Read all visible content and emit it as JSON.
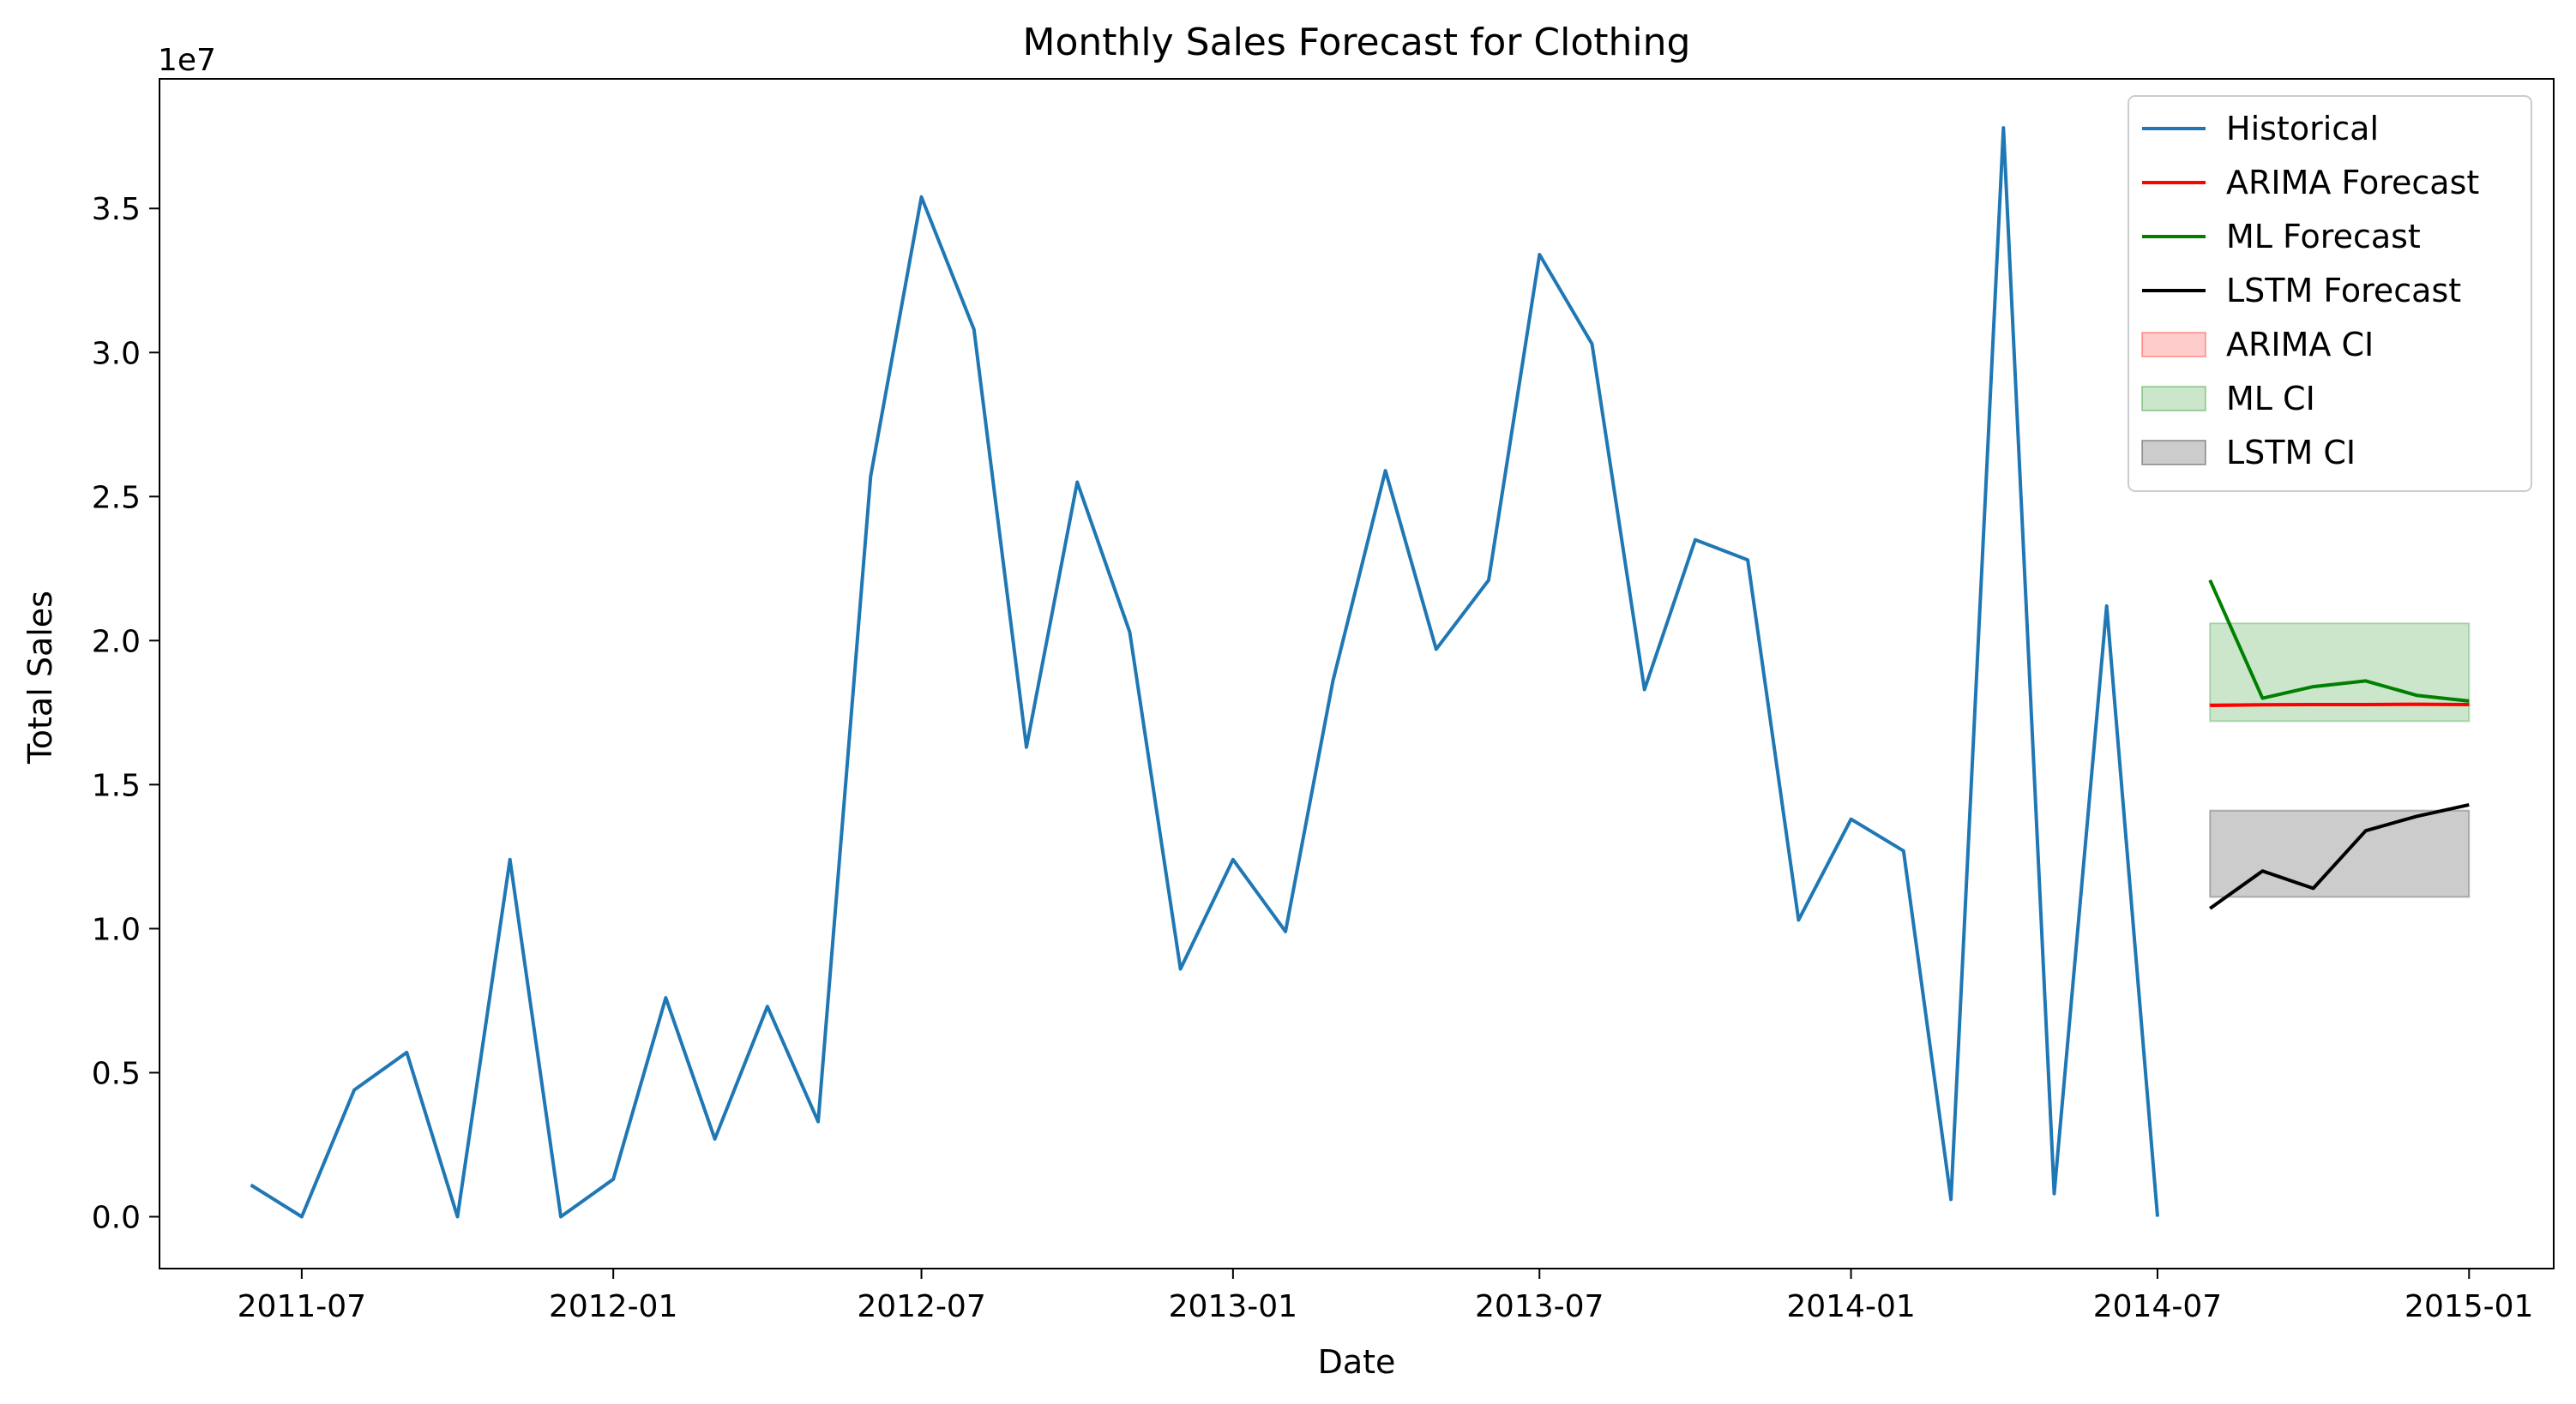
{
  "chart_data": {
    "type": "line",
    "title": "Monthly Sales Forecast for Clothing",
    "xlabel": "Date",
    "ylabel": "Total Sales",
    "y_multiplier_label": "1e7",
    "grid": false,
    "legend_position": "top-right",
    "xlim": [
      "2011-04-08",
      "2015-02-20"
    ],
    "ylim": [
      -0.18,
      3.95
    ],
    "x_ticks": [
      "2011-07",
      "2012-01",
      "2012-07",
      "2013-01",
      "2013-07",
      "2014-01",
      "2014-07",
      "2015-01"
    ],
    "y_ticks": [
      "0.0",
      "0.5",
      "1.0",
      "1.5",
      "2.0",
      "2.5",
      "3.0",
      "3.5"
    ],
    "series": [
      {
        "name": "Historical",
        "color": "#1f77b4",
        "x": [
          "2011-06-01",
          "2011-07-01",
          "2011-08-01",
          "2011-09-01",
          "2011-10-01",
          "2011-11-01",
          "2011-12-01",
          "2012-01-01",
          "2012-02-01",
          "2012-03-01",
          "2012-04-01",
          "2012-05-01",
          "2012-06-01",
          "2012-07-01",
          "2012-08-01",
          "2012-09-01",
          "2012-10-01",
          "2012-11-01",
          "2012-12-01",
          "2013-01-01",
          "2013-02-01",
          "2013-03-01",
          "2013-04-01",
          "2013-05-01",
          "2013-06-01",
          "2013-07-01",
          "2013-08-01",
          "2013-09-01",
          "2013-10-01",
          "2013-11-01",
          "2013-12-01",
          "2014-01-01",
          "2014-02-01",
          "2014-03-01",
          "2014-04-01",
          "2014-05-01",
          "2014-06-01",
          "2014-07-01"
        ],
        "y": [
          0.11,
          0.0,
          0.44,
          0.57,
          0.0,
          1.24,
          0.0,
          0.13,
          0.76,
          0.27,
          0.73,
          0.33,
          2.57,
          3.54,
          3.08,
          1.63,
          2.55,
          2.03,
          0.86,
          1.24,
          0.99,
          1.86,
          2.59,
          1.97,
          2.21,
          3.34,
          3.03,
          1.83,
          2.35,
          2.28,
          1.03,
          1.38,
          1.27,
          0.06,
          3.78,
          0.08,
          2.12,
          0.0
        ]
      },
      {
        "name": "ARIMA Forecast",
        "color": "#ff0000",
        "x": [
          "2014-08-01",
          "2014-09-01",
          "2014-10-01",
          "2014-11-01",
          "2014-12-01",
          "2015-01-01"
        ],
        "y": [
          1.775,
          1.777,
          1.778,
          1.778,
          1.779,
          1.778
        ]
      },
      {
        "name": "ML Forecast",
        "color": "#008000",
        "x": [
          "2014-08-01",
          "2014-09-01",
          "2014-10-01",
          "2014-11-01",
          "2014-12-01",
          "2015-01-01"
        ],
        "y": [
          2.21,
          1.8,
          1.84,
          1.86,
          1.81,
          1.79
        ]
      },
      {
        "name": "LSTM Forecast",
        "color": "#000000",
        "x": [
          "2014-08-01",
          "2014-09-01",
          "2014-10-01",
          "2014-11-01",
          "2014-12-01",
          "2015-01-01"
        ],
        "y": [
          1.07,
          1.2,
          1.14,
          1.34,
          1.39,
          1.43
        ]
      }
    ],
    "confidence_intervals": [
      {
        "name": "ARIMA CI",
        "fill": "#ff0000",
        "edge": "#ff0000",
        "x0": "2014-08-01",
        "x1": "2015-01-01",
        "lower": 1.775,
        "upper": 1.78
      },
      {
        "name": "ML CI",
        "fill": "#008000",
        "edge": "#008000",
        "x0": "2014-08-01",
        "x1": "2015-01-01",
        "lower": 1.72,
        "upper": 2.06
      },
      {
        "name": "LSTM CI",
        "fill": "#000000",
        "edge": "#000000",
        "x0": "2014-08-01",
        "x1": "2015-01-01",
        "lower": 1.11,
        "upper": 1.41
      }
    ]
  }
}
